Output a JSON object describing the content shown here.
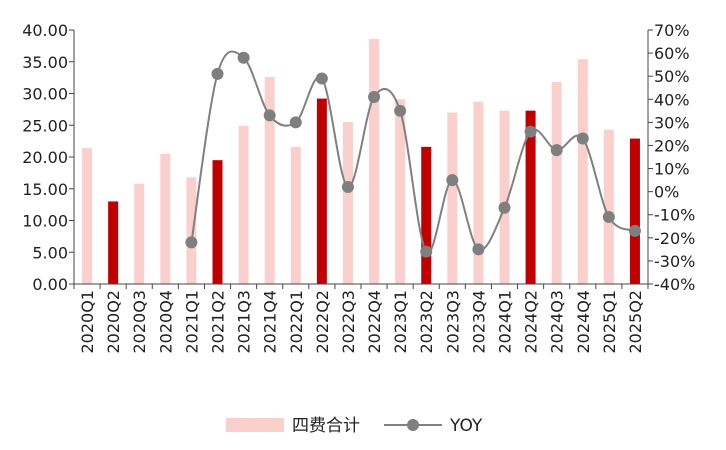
{
  "chart_data": {
    "type": "bar",
    "categories": [
      "2020Q1",
      "2020Q2",
      "2020Q3",
      "2020Q4",
      "2021Q1",
      "2021Q2",
      "2021Q3",
      "2021Q4",
      "2022Q1",
      "2022Q2",
      "2022Q3",
      "2022Q4",
      "2023Q1",
      "2023Q2",
      "2023Q3",
      "2023Q4",
      "2024Q1",
      "2024Q2",
      "2024Q3",
      "2024Q4",
      "2025Q1",
      "2025Q2"
    ],
    "series": [
      {
        "name": "四费合计",
        "type": "bar",
        "axis": "left",
        "values": [
          21.4,
          13.0,
          15.8,
          20.5,
          16.8,
          19.5,
          24.9,
          32.6,
          21.6,
          29.2,
          25.5,
          38.6,
          29.1,
          21.6,
          27.0,
          28.7,
          27.3,
          27.3,
          31.8,
          35.4,
          24.3,
          22.9
        ],
        "color": "#f9d0cb",
        "highlight_color": "#c00000",
        "highlighted_categories": [
          "2020Q2",
          "2021Q2",
          "2022Q2",
          "2023Q2",
          "2024Q2",
          "2025Q2"
        ]
      },
      {
        "name": "YOY",
        "type": "line",
        "axis": "right",
        "unit": "%",
        "values": [
          null,
          null,
          null,
          null,
          -22,
          51,
          58,
          33,
          30,
          49,
          2,
          41,
          35,
          -26,
          5,
          -25,
          -7,
          26,
          18,
          23,
          -11,
          -17
        ],
        "color": "#808080",
        "marker_color": "#7f7f7f"
      }
    ],
    "y_left": {
      "min": 0,
      "max": 40,
      "step": 5,
      "tick_labels": [
        "0.00",
        "5.00",
        "10.00",
        "15.00",
        "20.00",
        "25.00",
        "30.00",
        "35.00",
        "40.00"
      ]
    },
    "y_right": {
      "min": -40,
      "max": 70,
      "step": 10,
      "tick_labels": [
        "-40%",
        "-30%",
        "-20%",
        "-10%",
        "0%",
        "10%",
        "20%",
        "30%",
        "40%",
        "50%",
        "60%",
        "70%"
      ]
    },
    "legend": {
      "placement": "bottom-center"
    },
    "grid": false
  }
}
